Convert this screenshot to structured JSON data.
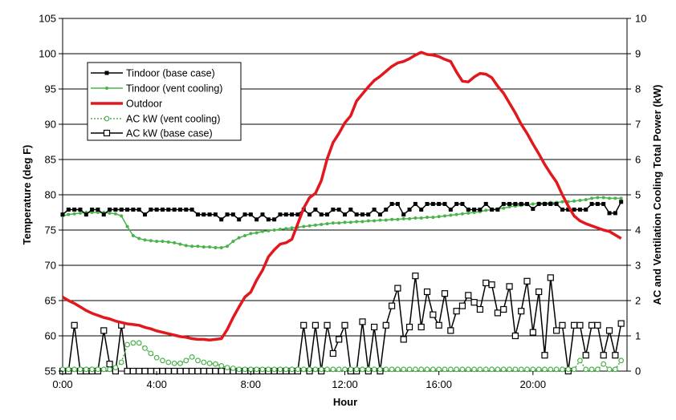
{
  "chart_data": {
    "type": "line",
    "xlabel": "Hour",
    "ylabel_left": "Temperature (deg F)",
    "ylabel_right": "AC and Ventilation Cooling Total Power (kW)",
    "xlim": [
      0,
      24
    ],
    "ylim_left": [
      55,
      105
    ],
    "ylim_right": [
      0,
      10
    ],
    "x_ticks": [
      {
        "value": 0,
        "label": "0:00"
      },
      {
        "value": 4,
        "label": "4:00"
      },
      {
        "value": 8,
        "label": "8:00"
      },
      {
        "value": 12,
        "label": "12:00"
      },
      {
        "value": 16,
        "label": "16:00"
      },
      {
        "value": 20,
        "label": "20:00"
      }
    ],
    "y_ticks_left": [
      55,
      60,
      65,
      70,
      75,
      80,
      85,
      90,
      95,
      100,
      105
    ],
    "y_ticks_right": [
      0,
      1,
      2,
      3,
      4,
      5,
      6,
      7,
      8,
      9,
      10
    ],
    "grid": "horizontal",
    "legend_position": "top-left",
    "series": [
      {
        "name": "Tindoor (base case)",
        "axis": "left",
        "color": "#000000",
        "marker": "filled-square",
        "x": [
          0.0,
          0.25,
          0.5,
          0.75,
          1.0,
          1.25,
          1.5,
          1.75,
          2.0,
          2.25,
          2.5,
          2.75,
          3.0,
          3.25,
          3.5,
          3.75,
          4.0,
          4.25,
          4.5,
          4.75,
          5.0,
          5.25,
          5.5,
          5.75,
          6.0,
          6.25,
          6.5,
          6.75,
          7.0,
          7.25,
          7.5,
          7.75,
          8.0,
          8.25,
          8.5,
          8.75,
          9.0,
          9.25,
          9.5,
          9.75,
          10.0,
          10.25,
          10.5,
          10.75,
          11.0,
          11.25,
          11.5,
          11.75,
          12.0,
          12.25,
          12.5,
          12.75,
          13.0,
          13.25,
          13.5,
          13.75,
          14.0,
          14.25,
          14.5,
          14.75,
          15.0,
          15.25,
          15.5,
          15.75,
          16.0,
          16.25,
          16.5,
          16.75,
          17.0,
          17.25,
          17.5,
          17.75,
          18.0,
          18.25,
          18.5,
          18.75,
          19.0,
          19.25,
          19.5,
          19.75,
          20.0,
          20.25,
          20.5,
          20.75,
          21.0,
          21.25,
          21.5,
          21.75,
          22.0,
          22.25,
          22.5,
          22.75,
          23.0,
          23.25,
          23.5,
          23.75
        ],
        "values": [
          77.2,
          77.9,
          77.9,
          77.9,
          77.2,
          77.9,
          77.9,
          77.2,
          77.9,
          77.9,
          77.9,
          77.9,
          77.9,
          77.9,
          77.2,
          77.9,
          77.9,
          77.9,
          77.9,
          77.9,
          77.9,
          77.9,
          77.9,
          77.2,
          77.2,
          77.2,
          77.2,
          76.5,
          77.2,
          77.2,
          76.5,
          77.2,
          77.2,
          76.5,
          77.2,
          76.5,
          76.5,
          77.2,
          77.2,
          77.2,
          77.2,
          77.9,
          77.2,
          77.9,
          77.2,
          77.2,
          77.9,
          77.9,
          77.2,
          77.9,
          77.2,
          77.2,
          77.2,
          77.9,
          77.2,
          77.9,
          78.7,
          78.7,
          77.2,
          77.9,
          78.7,
          77.9,
          78.7,
          78.7,
          78.7,
          78.7,
          77.9,
          78.7,
          78.7,
          77.9,
          77.9,
          77.9,
          78.7,
          77.9,
          77.9,
          78.7,
          78.7,
          78.7,
          78.7,
          78.7,
          78.0,
          78.7,
          78.7,
          78.7,
          78.7,
          77.9,
          77.9,
          77.9,
          77.9,
          77.9,
          78.7,
          78.7,
          78.7,
          77.4,
          77.4,
          79.0
        ]
      },
      {
        "name": "Tindoor (vent cooling)",
        "axis": "left",
        "color": "#4bb34b",
        "marker": "filled-circle",
        "x": [
          0.0,
          0.25,
          0.5,
          0.75,
          1.0,
          1.25,
          1.5,
          1.75,
          2.0,
          2.25,
          2.5,
          2.75,
          3.0,
          3.25,
          3.5,
          3.75,
          4.0,
          4.25,
          4.5,
          4.75,
          5.0,
          5.25,
          5.5,
          5.75,
          6.0,
          6.25,
          6.5,
          6.75,
          7.0,
          7.25,
          7.5,
          7.75,
          8.0,
          8.25,
          8.5,
          8.75,
          9.0,
          9.25,
          9.5,
          9.75,
          10.0,
          10.25,
          10.5,
          10.75,
          11.0,
          11.25,
          11.5,
          11.75,
          12.0,
          12.25,
          12.5,
          12.75,
          13.0,
          13.25,
          13.5,
          13.75,
          14.0,
          14.25,
          14.5,
          14.75,
          15.0,
          15.25,
          15.5,
          15.75,
          16.0,
          16.25,
          16.5,
          16.75,
          17.0,
          17.25,
          17.5,
          17.75,
          18.0,
          18.25,
          18.5,
          18.75,
          19.0,
          19.25,
          19.5,
          19.75,
          20.0,
          20.25,
          20.5,
          20.75,
          21.0,
          21.25,
          21.5,
          21.75,
          22.0,
          22.25,
          22.5,
          22.75,
          23.0,
          23.25,
          23.5,
          23.75
        ],
        "values": [
          77.0,
          77.2,
          77.3,
          77.4,
          77.5,
          77.5,
          77.5,
          77.5,
          77.4,
          77.3,
          77.0,
          75.5,
          74.2,
          73.8,
          73.6,
          73.5,
          73.4,
          73.4,
          73.3,
          73.2,
          73.0,
          72.8,
          72.7,
          72.7,
          72.6,
          72.6,
          72.5,
          72.5,
          72.7,
          73.4,
          73.9,
          74.2,
          74.5,
          74.6,
          74.8,
          74.9,
          75.0,
          75.1,
          75.2,
          75.3,
          75.4,
          75.5,
          75.6,
          75.7,
          75.8,
          75.9,
          76.0,
          76.0,
          76.1,
          76.1,
          76.2,
          76.2,
          76.3,
          76.3,
          76.4,
          76.4,
          76.5,
          76.5,
          76.6,
          76.6,
          76.7,
          76.7,
          76.8,
          76.8,
          76.9,
          77.0,
          77.1,
          77.2,
          77.3,
          77.4,
          77.5,
          77.6,
          77.8,
          77.9,
          78.0,
          78.1,
          78.3,
          78.4,
          78.5,
          78.6,
          78.7,
          78.8,
          78.8,
          78.9,
          78.9,
          79.0,
          79.0,
          79.1,
          79.2,
          79.3,
          79.5,
          79.6,
          79.6,
          79.5,
          79.5,
          79.5
        ]
      },
      {
        "name": "Outdoor",
        "axis": "left",
        "color": "#e3171e",
        "marker": "none",
        "x": [
          0.0,
          0.25,
          0.5,
          0.75,
          1.0,
          1.25,
          1.5,
          1.75,
          2.0,
          2.25,
          2.5,
          2.75,
          3.0,
          3.25,
          3.5,
          3.75,
          4.0,
          4.25,
          4.5,
          4.75,
          5.0,
          5.25,
          5.5,
          5.75,
          6.0,
          6.25,
          6.5,
          6.75,
          7.0,
          7.25,
          7.5,
          7.75,
          8.0,
          8.25,
          8.5,
          8.75,
          9.0,
          9.25,
          9.5,
          9.75,
          10.0,
          10.25,
          10.5,
          10.75,
          11.0,
          11.25,
          11.5,
          11.75,
          12.0,
          12.25,
          12.5,
          12.75,
          13.0,
          13.25,
          13.5,
          13.75,
          14.0,
          14.25,
          14.5,
          14.75,
          15.0,
          15.25,
          15.5,
          15.75,
          16.0,
          16.25,
          16.5,
          16.75,
          17.0,
          17.25,
          17.5,
          17.75,
          18.0,
          18.25,
          18.5,
          18.75,
          19.0,
          19.25,
          19.5,
          19.75,
          20.0,
          20.25,
          20.5,
          20.75,
          21.0,
          21.25,
          21.5,
          21.75,
          22.0,
          22.25,
          22.5,
          22.75,
          23.0,
          23.25,
          23.5,
          23.75
        ],
        "values": [
          65.5,
          65.0,
          64.6,
          64.1,
          63.6,
          63.2,
          62.9,
          62.6,
          62.4,
          62.1,
          61.9,
          61.7,
          61.6,
          61.5,
          61.2,
          61.0,
          60.7,
          60.5,
          60.3,
          60.1,
          59.9,
          59.8,
          59.6,
          59.5,
          59.5,
          59.4,
          59.5,
          59.6,
          60.9,
          62.6,
          64.1,
          65.5,
          66.2,
          67.9,
          69.3,
          71.2,
          72.2,
          73.0,
          73.2,
          73.7,
          75.9,
          78.1,
          79.6,
          80.2,
          82.0,
          85.1,
          87.4,
          88.7,
          90.2,
          91.2,
          93.3,
          94.3,
          95.3,
          96.2,
          96.8,
          97.5,
          98.2,
          98.7,
          98.9,
          99.3,
          99.8,
          100.2,
          99.9,
          99.8,
          99.6,
          99.2,
          98.9,
          97.4,
          96.1,
          96.0,
          96.7,
          97.2,
          97.1,
          96.6,
          95.4,
          94.4,
          93.0,
          91.6,
          90.0,
          88.7,
          87.2,
          85.8,
          84.3,
          83.0,
          81.8,
          80.0,
          78.4,
          77.0,
          76.3,
          75.9,
          75.6,
          75.3,
          75.0,
          74.8,
          74.3,
          73.8
        ]
      },
      {
        "name": "AC kW (vent cooling)",
        "axis": "right",
        "color": "#4bb34b",
        "marker": "open-circle",
        "dash": "dotted",
        "x": [
          0.0,
          0.25,
          0.5,
          0.75,
          1.0,
          1.25,
          1.5,
          1.75,
          2.0,
          2.25,
          2.5,
          2.75,
          3.0,
          3.25,
          3.5,
          3.75,
          4.0,
          4.25,
          4.5,
          4.75,
          5.0,
          5.25,
          5.5,
          5.75,
          6.0,
          6.25,
          6.5,
          6.75,
          7.0,
          7.25,
          7.5,
          7.75,
          8.0,
          8.25,
          8.5,
          8.75,
          9.0,
          9.25,
          9.5,
          9.75,
          10.0,
          10.25,
          10.5,
          10.75,
          11.0,
          11.25,
          11.5,
          11.75,
          12.0,
          12.25,
          12.5,
          12.75,
          13.0,
          13.25,
          13.5,
          13.75,
          14.0,
          14.25,
          14.5,
          14.75,
          15.0,
          15.25,
          15.5,
          15.75,
          16.0,
          16.25,
          16.5,
          16.75,
          17.0,
          17.25,
          17.5,
          17.75,
          18.0,
          18.25,
          18.5,
          18.75,
          19.0,
          19.25,
          19.5,
          19.75,
          20.0,
          20.25,
          20.5,
          20.75,
          21.0,
          21.25,
          21.5,
          21.75,
          22.0,
          22.25,
          22.5,
          22.75,
          23.0,
          23.25,
          23.5,
          23.75
        ],
        "values": [
          0.05,
          0.05,
          0.05,
          0.05,
          0.05,
          0.05,
          0.05,
          0.05,
          0.05,
          0.1,
          0.25,
          0.75,
          0.8,
          0.8,
          0.65,
          0.5,
          0.38,
          0.3,
          0.25,
          0.22,
          0.22,
          0.3,
          0.4,
          0.3,
          0.25,
          0.22,
          0.2,
          0.15,
          0.1,
          0.08,
          0.05,
          0.05,
          0.05,
          0.05,
          0.05,
          0.05,
          0.05,
          0.05,
          0.05,
          0.05,
          0.05,
          0.05,
          0.05,
          0.05,
          0.05,
          0.05,
          0.05,
          0.05,
          0.05,
          0.05,
          0.05,
          0.05,
          0.05,
          0.05,
          0.05,
          0.05,
          0.05,
          0.05,
          0.05,
          0.05,
          0.05,
          0.05,
          0.05,
          0.05,
          0.05,
          0.05,
          0.05,
          0.05,
          0.05,
          0.05,
          0.05,
          0.05,
          0.05,
          0.05,
          0.05,
          0.05,
          0.05,
          0.05,
          0.05,
          0.05,
          0.05,
          0.05,
          0.05,
          0.05,
          0.05,
          0.05,
          0.05,
          0.05,
          0.3,
          0.05,
          0.05,
          0.05,
          0.2,
          0.05,
          0.05,
          0.3
        ]
      },
      {
        "name": "AC kW (base case)",
        "axis": "right",
        "color": "#000000",
        "marker": "open-square",
        "x": [
          0.0,
          0.25,
          0.5,
          0.75,
          1.0,
          1.25,
          1.5,
          1.75,
          2.0,
          2.25,
          2.5,
          2.75,
          3.0,
          3.25,
          3.5,
          3.75,
          4.0,
          4.25,
          4.5,
          4.75,
          5.0,
          5.25,
          5.5,
          5.75,
          6.0,
          6.25,
          6.5,
          6.75,
          7.0,
          7.25,
          7.5,
          7.75,
          8.0,
          8.25,
          8.5,
          8.75,
          9.0,
          9.25,
          9.5,
          9.75,
          10.0,
          10.25,
          10.5,
          10.75,
          11.0,
          11.25,
          11.5,
          11.75,
          12.0,
          12.25,
          12.5,
          12.75,
          13.0,
          13.25,
          13.5,
          13.75,
          14.0,
          14.25,
          14.5,
          14.75,
          15.0,
          15.25,
          15.5,
          15.75,
          16.0,
          16.25,
          16.5,
          16.75,
          17.0,
          17.25,
          17.5,
          17.75,
          18.0,
          18.25,
          18.5,
          18.75,
          19.0,
          19.25,
          19.5,
          19.75,
          20.0,
          20.25,
          20.5,
          20.75,
          21.0,
          21.25,
          21.5,
          21.75,
          22.0,
          22.25,
          22.5,
          22.75,
          23.0,
          23.25,
          23.5,
          23.75
        ],
        "values": [
          0.0,
          0.0,
          1.3,
          0.0,
          0.0,
          0.0,
          0.0,
          1.15,
          0.2,
          0.0,
          1.3,
          0.0,
          0.0,
          0.0,
          0.0,
          0.0,
          0.0,
          0.0,
          0.0,
          0.0,
          0.0,
          0.0,
          0.0,
          0.0,
          0.0,
          0.0,
          0.0,
          0.0,
          0.0,
          0.0,
          0.0,
          0.0,
          0.0,
          0.0,
          0.0,
          0.0,
          0.0,
          0.0,
          0.0,
          0.0,
          0.0,
          1.3,
          0.0,
          1.3,
          0.0,
          1.3,
          0.5,
          0.9,
          1.3,
          0.0,
          0.0,
          1.4,
          0.0,
          1.25,
          0.0,
          1.3,
          1.85,
          2.35,
          0.9,
          1.25,
          2.7,
          1.25,
          2.25,
          1.6,
          1.3,
          2.2,
          1.15,
          1.7,
          1.85,
          2.15,
          1.95,
          1.75,
          2.5,
          2.45,
          1.65,
          1.75,
          2.4,
          1.0,
          1.7,
          2.55,
          1.1,
          2.25,
          0.45,
          2.65,
          1.15,
          1.3,
          0.0,
          1.3,
          1.3,
          0.45,
          1.3,
          1.3,
          0.45,
          1.15,
          0.45,
          1.35
        ]
      }
    ]
  }
}
